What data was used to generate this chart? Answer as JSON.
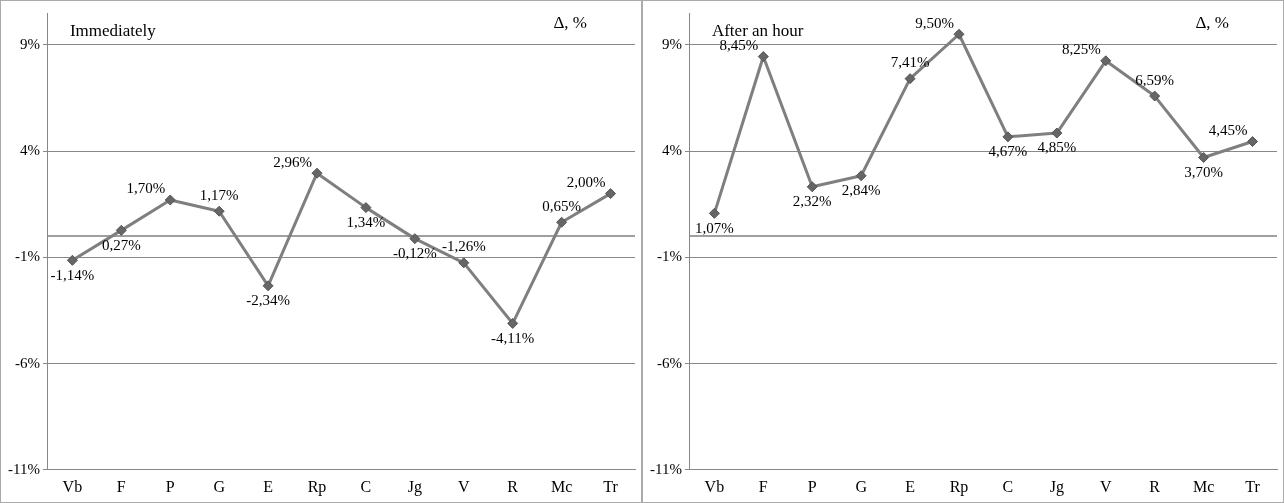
{
  "chart_data": [
    {
      "type": "line",
      "title": "Immediately",
      "ylabel": "Δ, %",
      "categories": [
        "Vb",
        "F",
        "P",
        "G",
        "E",
        "Rp",
        "C",
        "Jg",
        "V",
        "R",
        "Mc",
        "Tr"
      ],
      "series": [
        {
          "color": "#7f7f7f",
          "values": [
            -1.14,
            0.27,
            1.7,
            1.17,
            -2.34,
            2.96,
            1.34,
            -0.12,
            -1.26,
            -4.11,
            0.65,
            2.0
          ],
          "value_labels": [
            "-1,14%",
            "0,27%",
            "1,70%",
            "1,17%",
            "-2,34%",
            "2,96%",
            "1,34%",
            "-0,12%",
            "-1,26%",
            "-4,11%",
            "0,65%",
            "2,00%"
          ]
        }
      ],
      "ylim": [
        -11,
        10.5
      ],
      "yticks": [
        {
          "value": -11,
          "label": "-11%"
        },
        {
          "value": -6,
          "label": "-6%"
        },
        {
          "value": -1,
          "label": "-1%"
        },
        {
          "value": 4,
          "label": "4%"
        },
        {
          "value": 9,
          "label": "9%"
        }
      ],
      "grid": "y",
      "marker": "diamond",
      "legend": false,
      "ref_lines": [
        {
          "axis": "y",
          "value": 0,
          "color": "#7f7f7f"
        }
      ]
    },
    {
      "type": "line",
      "title": "After an hour",
      "ylabel": "Δ, %",
      "categories": [
        "Vb",
        "F",
        "P",
        "G",
        "E",
        "Rp",
        "C",
        "Jg",
        "V",
        "R",
        "Mc",
        "Tr"
      ],
      "series": [
        {
          "color": "#7f7f7f",
          "values": [
            1.07,
            8.45,
            2.32,
            2.84,
            7.41,
            9.5,
            4.67,
            4.85,
            8.25,
            6.59,
            3.7,
            4.45
          ],
          "value_labels": [
            "1,07%",
            "8,45%",
            "2,32%",
            "2,84%",
            "7,41%",
            "9,50%",
            "4,67%",
            "4,85%",
            "8,25%",
            "6,59%",
            "3,70%",
            "4,45%"
          ]
        }
      ],
      "ylim": [
        -11,
        10.5
      ],
      "yticks": [
        {
          "value": -11,
          "label": "-11%"
        },
        {
          "value": -6,
          "label": "-6%"
        },
        {
          "value": -1,
          "label": "-1%"
        },
        {
          "value": 4,
          "label": "4%"
        },
        {
          "value": 9,
          "label": "9%"
        }
      ],
      "grid": "y",
      "marker": "diamond",
      "legend": false,
      "ref_lines": [
        {
          "axis": "y",
          "value": 0,
          "color": "#7f7f7f"
        }
      ]
    }
  ]
}
